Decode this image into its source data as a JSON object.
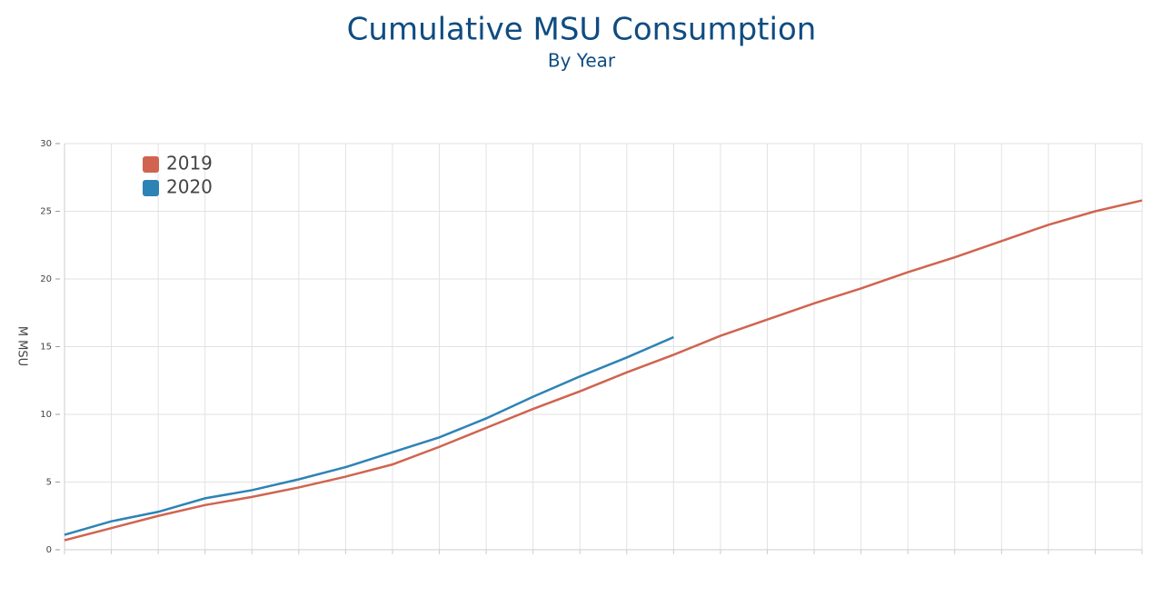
{
  "chart_data": {
    "type": "line",
    "title": "Cumulative MSU Consumption",
    "subtitle": "By Year",
    "ylabel": "M MSU",
    "categories": [
      null,
      null,
      null,
      null,
      null,
      null,
      null,
      null,
      null,
      null,
      null,
      null,
      null,
      null,
      null,
      null,
      null,
      null,
      null,
      null,
      null,
      null,
      null,
      null
    ],
    "series": [
      {
        "name": "2019",
        "color": "#d06450",
        "values": [
          0.7,
          1.6,
          2.5,
          3.3,
          3.9,
          4.6,
          5.4,
          6.3,
          7.6,
          9.0,
          10.4,
          11.7,
          13.1,
          14.4,
          15.8,
          17.0,
          18.2,
          19.3,
          20.5,
          21.6,
          22.8,
          24.0,
          25.0,
          25.8
        ]
      },
      {
        "name": "2020",
        "color": "#2e83b5",
        "values": [
          1.1,
          2.1,
          2.8,
          3.8,
          4.4,
          5.2,
          6.1,
          7.2,
          8.3,
          9.7,
          11.3,
          12.8,
          14.2,
          15.7,
          null,
          null,
          null,
          null,
          null,
          null,
          null,
          null,
          null,
          null
        ]
      }
    ],
    "ylim": [
      0,
      30
    ],
    "yticks": [
      0,
      5,
      10,
      15,
      20,
      25,
      30
    ],
    "grid": true,
    "legend": "upper left"
  }
}
